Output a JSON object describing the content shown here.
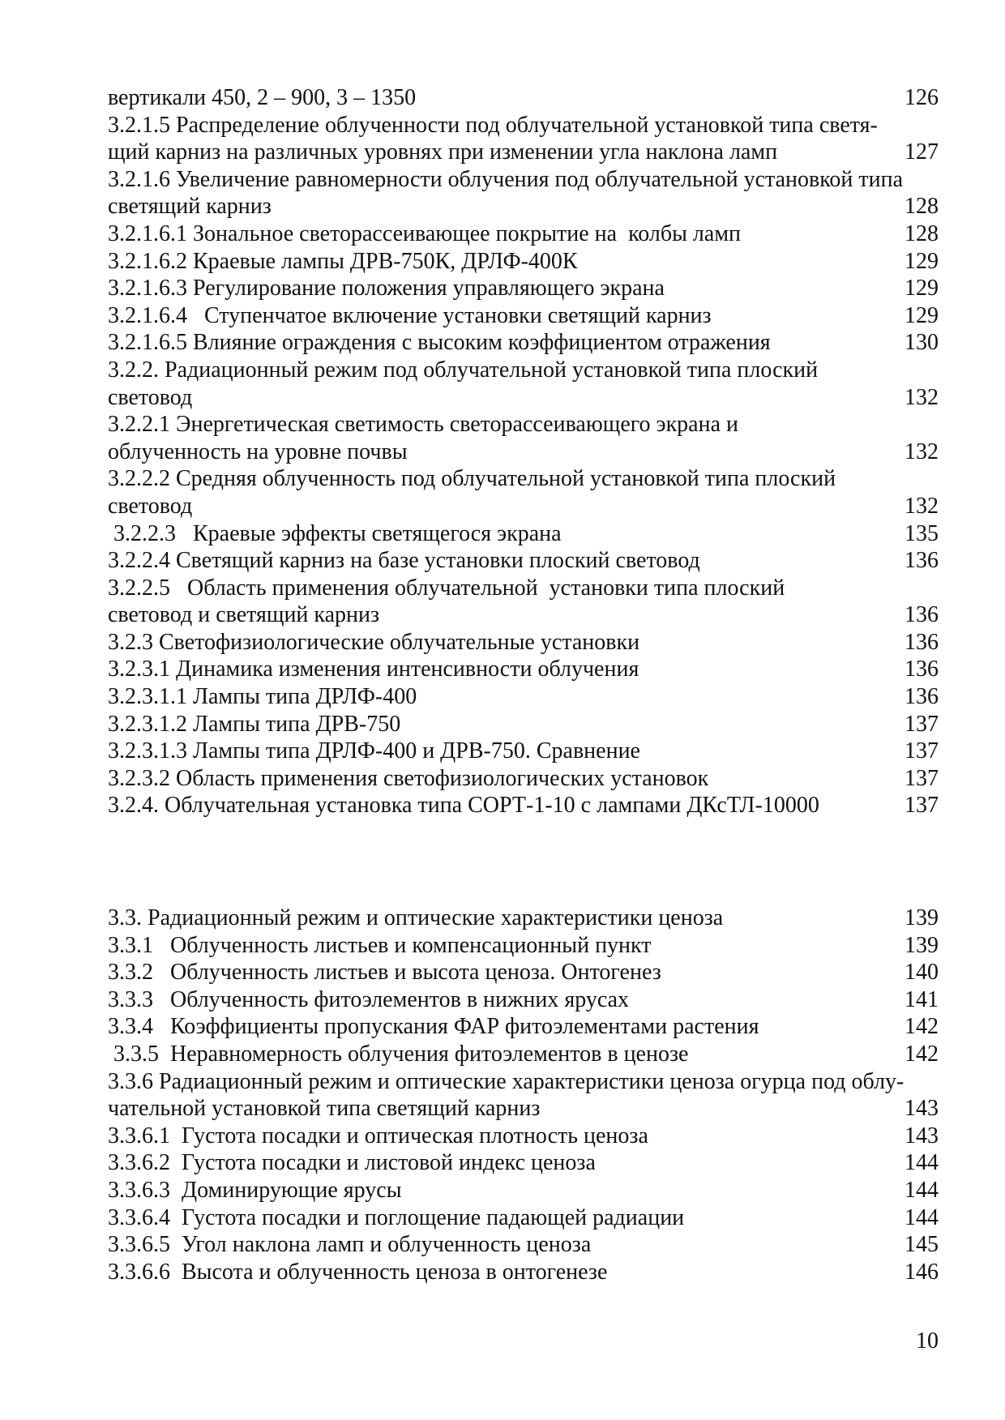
{
  "colors": {
    "background": "#ffffff",
    "text": "#111111"
  },
  "toc": {
    "lines": [
      {
        "text": "вертикали 450, 2 – 900, 3 – 1350",
        "page": "126",
        "gap_before": false
      },
      {
        "text": "3.2.1.5 Распределение облученности под облучательной установкой типа светя-",
        "page": "",
        "gap_before": false
      },
      {
        "text": "щий карниз на различных уровнях при изменении угла наклона ламп",
        "page": "127",
        "gap_before": false
      },
      {
        "text": "3.2.1.6 Увеличение равномерности облучения под облучательной установкой типа",
        "page": "",
        "gap_before": false
      },
      {
        "text": "светящий карниз",
        "page": "128",
        "gap_before": false
      },
      {
        "text": "3.2.1.6.1 Зональное светорассеивающее покрытие на  колбы ламп",
        "page": "128",
        "gap_before": false
      },
      {
        "text": "3.2.1.6.2 Краевые лампы ДРВ-750К, ДРЛФ-400К",
        "page": "129",
        "gap_before": false
      },
      {
        "text": "3.2.1.6.3 Регулирование положения управляющего экрана",
        "page": "129",
        "gap_before": false
      },
      {
        "text": "3.2.1.6.4   Ступенчатое включение установки светящий карниз",
        "page": "129",
        "gap_before": false
      },
      {
        "text": "3.2.1.6.5 Влияние ограждения с высоким коэффициентом отражения",
        "page": "130",
        "gap_before": false
      },
      {
        "text": "3.2.2. Радиационный режим под облучательной установкой типа плоский",
        "page": "",
        "gap_before": false
      },
      {
        "text": "световод",
        "page": "132",
        "gap_before": false
      },
      {
        "text": "3.2.2.1 Энергетическая светимость светорассеивающего экрана и",
        "page": "",
        "gap_before": false
      },
      {
        "text": "облученность на уровне почвы",
        "page": "132",
        "gap_before": false
      },
      {
        "text": "3.2.2.2 Средняя облученность под облучательной установкой типа плоский",
        "page": "",
        "gap_before": false
      },
      {
        "text": "световод",
        "page": "132",
        "gap_before": false
      },
      {
        "text": " 3.2.2.3   Краевые эффекты светящегося экрана",
        "page": "135",
        "gap_before": false
      },
      {
        "text": "3.2.2.4 Светящий карниз на базе установки плоский световод",
        "page": "136",
        "gap_before": false
      },
      {
        "text": "3.2.2.5   Область применения облучательной  установки типа плоский",
        "page": "",
        "gap_before": false
      },
      {
        "text": "световод и светящий карниз",
        "page": "136",
        "gap_before": false
      },
      {
        "text": "3.2.3 Светофизиологические облучательные установки",
        "page": "136",
        "gap_before": false
      },
      {
        "text": "3.2.3.1 Динамика изменения интенсивности облучения",
        "page": "136",
        "gap_before": false
      },
      {
        "text": "3.2.3.1.1 Лампы типа ДРЛФ-400",
        "page": "136",
        "gap_before": false
      },
      {
        "text": "3.2.3.1.2 Лампы типа ДРВ-750",
        "page": "137",
        "gap_before": false
      },
      {
        "text": "3.2.3.1.3 Лампы типа ДРЛФ-400 и ДРВ-750. Сравнение",
        "page": "137",
        "gap_before": false
      },
      {
        "text": "3.2.3.2 Область применения светофизиологических установок",
        "page": "137",
        "gap_before": false
      },
      {
        "text": "3.2.4. Облучательная установка типа СОРТ-1-10 с лампами ДКсТЛ-10000",
        "page": "137",
        "gap_before": false
      },
      {
        "text": "3.3. Радиационный режим и оптические характеристики ценоза",
        "page": "139",
        "gap_before": true
      },
      {
        "text": "3.3.1   Облученность листьев и компенсационный пункт",
        "page": "139",
        "gap_before": false
      },
      {
        "text": "3.3.2   Облученность листьев и высота ценоза. Онтогенез",
        "page": "140",
        "gap_before": false
      },
      {
        "text": "3.3.3   Облученность фитоэлементов в нижних ярусах",
        "page": "141",
        "gap_before": false
      },
      {
        "text": "3.3.4   Коэффициенты пропускания ФАР фитоэлементами растения",
        "page": "142",
        "gap_before": false
      },
      {
        "text": " 3.3.5  Неравномерность облучения фитоэлементов в ценозе",
        "page": "142",
        "gap_before": false
      },
      {
        "text": "3.3.6 Радиационный режим и оптические характеристики ценоза огурца под облу-",
        "page": "",
        "gap_before": false
      },
      {
        "text": "чательной установкой типа светящий карниз",
        "page": "143",
        "gap_before": false
      },
      {
        "text": "3.3.6.1  Густота посадки и оптическая плотность ценоза",
        "page": "143",
        "gap_before": false
      },
      {
        "text": "3.3.6.2  Густота посадки и листовой индекс ценоза",
        "page": "144",
        "gap_before": false
      },
      {
        "text": "3.3.6.3  Доминирующие ярусы",
        "page": "144",
        "gap_before": false
      },
      {
        "text": "3.3.6.4  Густота посадки и поглощение падающей радиации",
        "page": "144",
        "gap_before": false
      },
      {
        "text": "3.3.6.5  Угол наклона ламп и облученность ценоза",
        "page": "145",
        "gap_before": false
      },
      {
        "text": "3.3.6.6  Высота и облученность ценоза в онтогенезе",
        "page": "146",
        "gap_before": false
      }
    ]
  },
  "footer": {
    "page_number": "10"
  }
}
